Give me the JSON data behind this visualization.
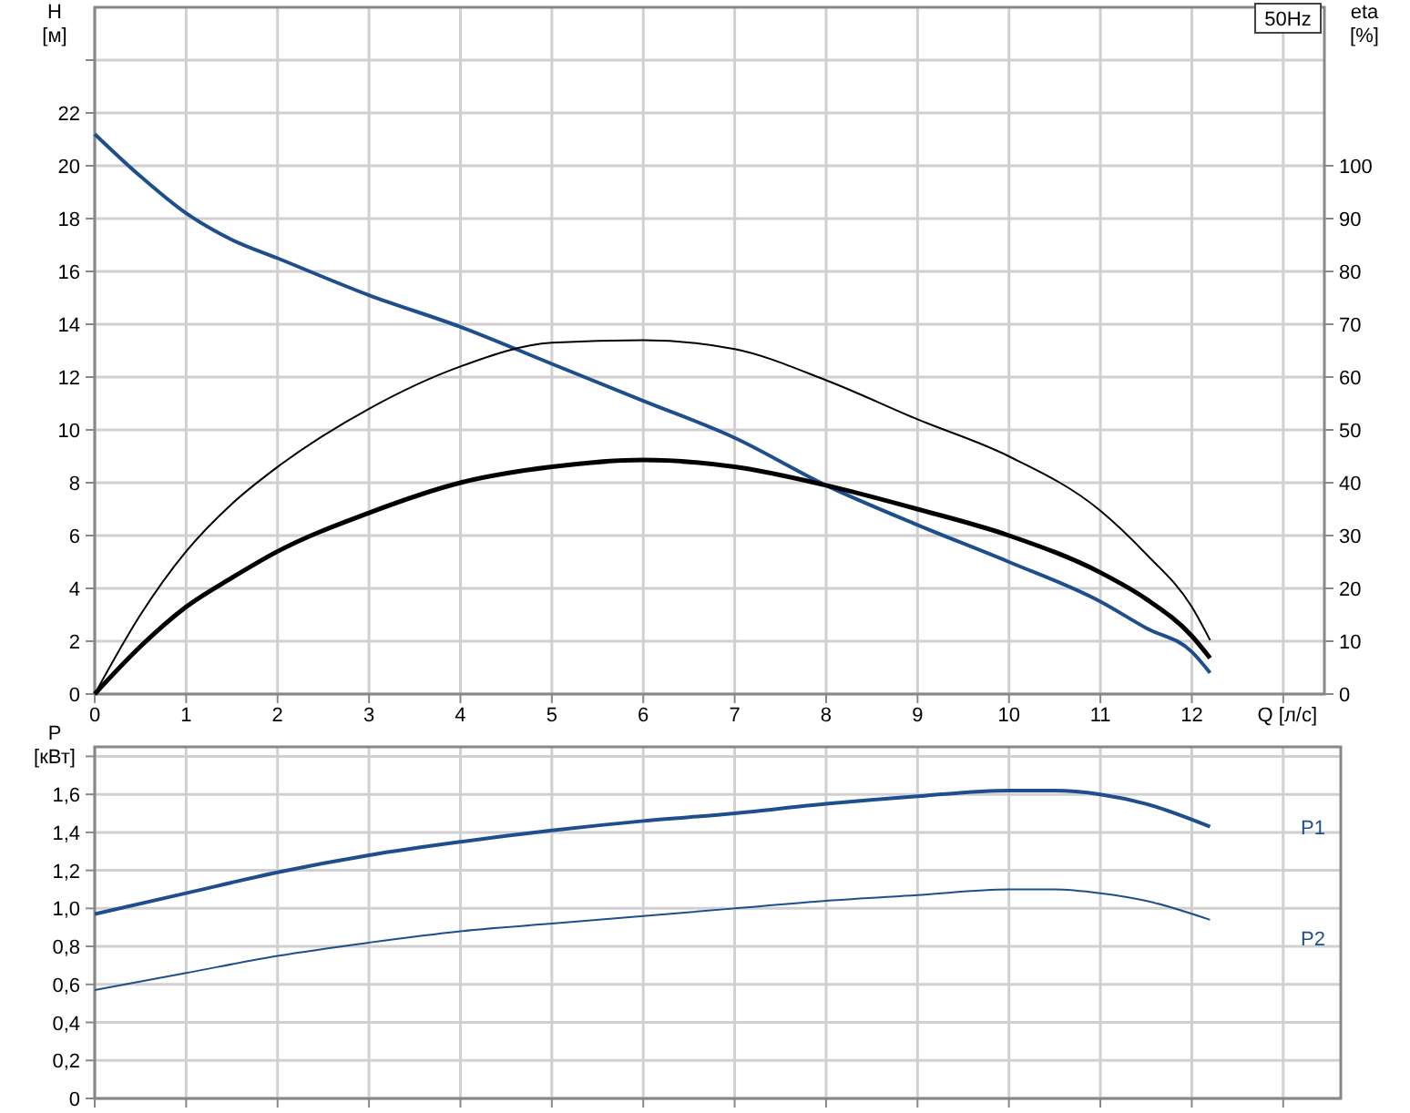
{
  "chart_data": [
    {
      "type": "line",
      "xlabel": "Q [л/с]",
      "ylabel": "H [м]",
      "y2label": "eta [%]",
      "annotations": [
        "50Hz"
      ],
      "xlim": [
        0,
        13.45
      ],
      "xticks": [
        0,
        1,
        2,
        3,
        4,
        5,
        6,
        7,
        8,
        9,
        10,
        11,
        12,
        {
          "value": 13,
          "label": null
        }
      ],
      "ylim": [
        0,
        26
      ],
      "yticks": [
        0,
        2,
        4,
        6,
        8,
        10,
        12,
        14,
        16,
        18,
        20,
        22,
        {
          "value": 24,
          "label": null
        }
      ],
      "y2lim": [
        0,
        130
      ],
      "y2ticks": [
        0,
        10,
        20,
        30,
        40,
        50,
        60,
        70,
        80,
        90,
        100
      ],
      "grid": true,
      "series": [
        {
          "color": "#1f4e8c",
          "x": [
            0,
            0.5,
            1,
            1.5,
            2,
            3,
            4,
            5,
            6,
            7,
            8,
            9,
            10,
            11,
            11.5,
            12,
            12.2
          ],
          "values": [
            21.2,
            19.6,
            18.2,
            17.2,
            16.5,
            15.1,
            13.9,
            12.5,
            11.1,
            9.7,
            7.9,
            6.4,
            5.0,
            3.5,
            2.5,
            1.6,
            0.8
          ]
        },
        {
          "color": "#000000",
          "axis": "y2",
          "x": [
            0,
            0.5,
            1,
            1.5,
            2,
            3,
            4,
            5,
            6,
            7,
            8,
            9,
            10,
            11,
            11.5,
            12,
            12.2
          ],
          "values": [
            0,
            15,
            27,
            36,
            43,
            54,
            62,
            66.5,
            67,
            65.3,
            59.4,
            52,
            45,
            34.7,
            26.5,
            16.5,
            10.2
          ]
        },
        {
          "color": "#000000",
          "axis": "y2",
          "x": [
            0,
            0.5,
            1,
            1.5,
            2,
            3,
            4,
            5,
            6,
            7,
            8,
            9,
            10,
            11,
            11.5,
            12,
            12.2
          ],
          "values": [
            0,
            9,
            16.5,
            22,
            27,
            34.3,
            40,
            43,
            44.3,
            43,
            39.5,
            35,
            30,
            23,
            18,
            11,
            6.8
          ]
        }
      ]
    },
    {
      "type": "line",
      "ylabel": "P [кВт]",
      "tick_labels": "y",
      "xlim": [
        0,
        13.63
      ],
      "xticks": [
        0,
        1,
        2,
        3,
        4,
        5,
        6,
        7,
        8,
        9,
        10,
        11,
        12,
        13
      ],
      "ylim": [
        0,
        1.85
      ],
      "yticks": [
        0,
        {
          "value": 0.2,
          "label": "0,2"
        },
        {
          "value": 0.4,
          "label": "0,4"
        },
        {
          "value": 0.6,
          "label": "0,6"
        },
        {
          "value": 0.8,
          "label": "0,8"
        },
        {
          "value": 1.0,
          "label": "1,0"
        },
        {
          "value": 1.2,
          "label": "1,2"
        },
        {
          "value": 1.4,
          "label": "1,4"
        },
        {
          "value": 1.6,
          "label": "1,6"
        },
        {
          "value": 1.8,
          "label": null
        }
      ],
      "grid": true,
      "series": [
        {
          "name": "P1",
          "color": "#1f4e8c",
          "x": [
            0,
            1,
            2,
            3,
            4,
            5,
            6,
            7,
            8,
            9,
            10,
            10.5,
            11,
            11.5,
            12.2
          ],
          "values": [
            0.97,
            1.08,
            1.19,
            1.28,
            1.35,
            1.41,
            1.46,
            1.5,
            1.55,
            1.59,
            1.62,
            1.62,
            1.6,
            1.55,
            1.43
          ]
        },
        {
          "name": "P2",
          "color": "#1f4e8c",
          "x": [
            0,
            1,
            2,
            3,
            4,
            5,
            6,
            7,
            8,
            9,
            10,
            10.5,
            11,
            11.5,
            12.2
          ],
          "values": [
            0.57,
            0.66,
            0.75,
            0.82,
            0.88,
            0.92,
            0.96,
            1.0,
            1.04,
            1.07,
            1.1,
            1.1,
            1.08,
            1.04,
            0.94
          ]
        }
      ]
    }
  ]
}
